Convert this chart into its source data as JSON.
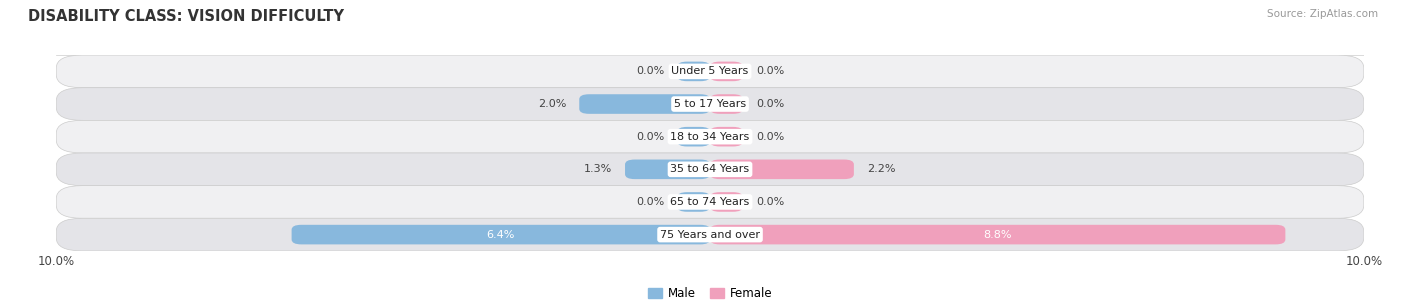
{
  "title": "DISABILITY CLASS: VISION DIFFICULTY",
  "source": "Source: ZipAtlas.com",
  "categories": [
    "Under 5 Years",
    "5 to 17 Years",
    "18 to 34 Years",
    "35 to 64 Years",
    "65 to 74 Years",
    "75 Years and over"
  ],
  "male_values": [
    0.0,
    2.0,
    0.0,
    1.3,
    0.0,
    6.4
  ],
  "female_values": [
    0.0,
    0.0,
    0.0,
    2.2,
    0.0,
    8.8
  ],
  "male_color": "#88b8dd",
  "female_color": "#f0a0bc",
  "male_color_dark": "#6aa0cc",
  "female_color_dark": "#e8789a",
  "row_light_bg": "#f0f0f2",
  "row_dark_bg": "#e4e4e8",
  "axis_max": 10.0,
  "label_fontsize": 8.0,
  "title_fontsize": 10.5,
  "source_fontsize": 7.5,
  "bar_height": 0.6,
  "figsize": [
    14.06,
    3.06
  ],
  "dpi": 100,
  "stub_size": 0.5
}
